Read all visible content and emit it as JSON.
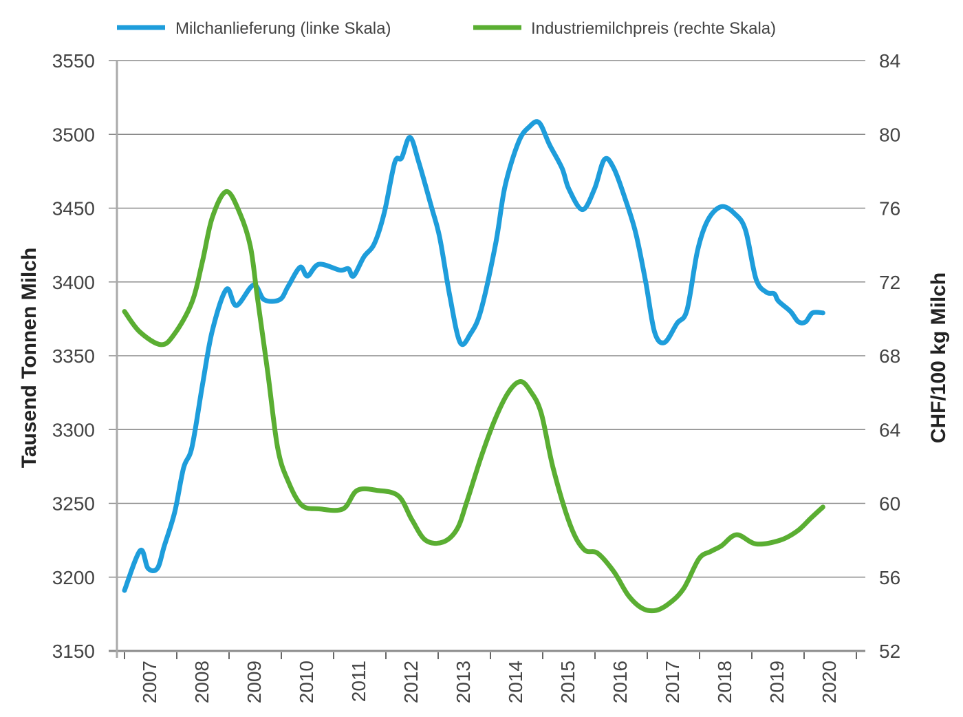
{
  "chart_data": {
    "type": "line",
    "title": "",
    "ylabel": "Tausend Tonnen Milch",
    "y2label": "CHF/100 kg Milch",
    "ylim": [
      3150,
      3550
    ],
    "y2lim": [
      52,
      84
    ],
    "yticks": [
      "3150",
      "3200",
      "3250",
      "3300",
      "3350",
      "3400",
      "3450",
      "3500",
      "3550"
    ],
    "y2ticks": [
      "52",
      "56",
      "60",
      "64",
      "68",
      "72",
      "76",
      "80",
      "84"
    ],
    "xticks": [
      "2007",
      "2008",
      "2009",
      "2010",
      "2011",
      "2012",
      "2013",
      "2014",
      "2015",
      "2016",
      "2017",
      "2018",
      "2019",
      "2020"
    ],
    "xlim": [
      2007,
      2021
    ],
    "grid": true,
    "legend_placement": "top",
    "series": [
      {
        "name": "Milchanlieferung (linke Skala)",
        "axis": "left",
        "color": "#1e9ddb",
        "x": [
          2007.0,
          2007.3,
          2007.45,
          2007.63,
          2007.76,
          2007.96,
          2008.13,
          2008.29,
          2008.49,
          2008.68,
          2008.95,
          2009.14,
          2009.47,
          2009.67,
          2009.97,
          2010.13,
          2010.36,
          2010.5,
          2010.72,
          2011.12,
          2011.28,
          2011.38,
          2011.58,
          2011.78,
          2011.97,
          2012.17,
          2012.3,
          2012.46,
          2012.63,
          2012.87,
          2013.03,
          2013.22,
          2013.42,
          2013.62,
          2013.82,
          2014.1,
          2014.28,
          2014.54,
          2014.74,
          2014.93,
          2015.13,
          2015.37,
          2015.5,
          2015.76,
          2015.99,
          2016.18,
          2016.36,
          2016.58,
          2016.78,
          2016.97,
          2017.14,
          2017.33,
          2017.57,
          2017.76,
          2017.96,
          2018.16,
          2018.42,
          2018.68,
          2018.88,
          2019.08,
          2019.28,
          2019.43,
          2019.51,
          2019.74,
          2019.89,
          2020.03,
          2020.16,
          2020.36
        ],
        "values": [
          3191,
          3218,
          3206,
          3206,
          3221,
          3244,
          3274,
          3288,
          3330,
          3367,
          3395,
          3384,
          3398,
          3388,
          3388,
          3397,
          3410,
          3404,
          3412,
          3408,
          3409,
          3404,
          3417,
          3426,
          3447,
          3481,
          3484,
          3498,
          3481,
          3451,
          3430,
          3391,
          3359,
          3365,
          3381,
          3426,
          3465,
          3495,
          3505,
          3508,
          3493,
          3477,
          3463,
          3449,
          3463,
          3483,
          3477,
          3456,
          3433,
          3400,
          3366,
          3359,
          3372,
          3381,
          3421,
          3442,
          3451,
          3446,
          3435,
          3402,
          3393,
          3392,
          3387,
          3380,
          3373,
          3373,
          3379,
          3379
        ]
      },
      {
        "name": "Industriemilchpreis (rechte Skala)",
        "axis": "right",
        "color": "#5aae32",
        "x": [
          2007.0,
          2007.29,
          2007.7,
          2007.96,
          2008.29,
          2008.49,
          2008.68,
          2008.95,
          2009.21,
          2009.41,
          2009.54,
          2009.74,
          2009.93,
          2010.13,
          2010.39,
          2010.72,
          2011.18,
          2011.45,
          2011.84,
          2012.24,
          2012.5,
          2012.76,
          2013.09,
          2013.36,
          2013.55,
          2013.82,
          2014.08,
          2014.34,
          2014.57,
          2014.76,
          2014.97,
          2015.2,
          2015.53,
          2015.79,
          2016.05,
          2016.36,
          2016.64,
          2016.91,
          2017.17,
          2017.43,
          2017.7,
          2017.99,
          2018.22,
          2018.42,
          2018.71,
          2019.08,
          2019.54,
          2019.87,
          2020.13,
          2020.36
        ],
        "values": [
          70.4,
          69.3,
          68.6,
          69.2,
          70.9,
          73.1,
          75.5,
          76.9,
          75.7,
          73.9,
          71.2,
          67.1,
          63.0,
          61.2,
          59.9,
          59.7,
          59.7,
          60.7,
          60.7,
          60.4,
          59.1,
          58.0,
          57.9,
          58.6,
          60.1,
          62.5,
          64.5,
          66.0,
          66.6,
          66.1,
          64.9,
          61.9,
          58.8,
          57.5,
          57.3,
          56.3,
          55.0,
          54.3,
          54.2,
          54.6,
          55.4,
          57.0,
          57.4,
          57.7,
          58.3,
          57.8,
          58.0,
          58.5,
          59.2,
          59.8
        ]
      }
    ]
  }
}
